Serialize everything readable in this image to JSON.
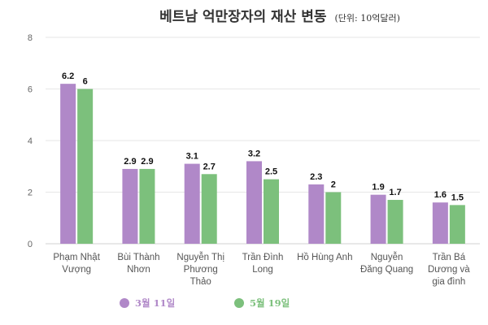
{
  "chart_data": {
    "type": "bar",
    "title": "베트남 억만장자의 재산 변동",
    "subtitle": "(단위: 10억달러)",
    "xlabel": "",
    "ylabel": "",
    "ylim": [
      0,
      8
    ],
    "yticks": [
      0,
      2,
      4,
      6,
      8
    ],
    "grid": true,
    "legend_position": "bottom-left",
    "categories": [
      [
        "Phạm Nhật",
        "Vượng"
      ],
      [
        "Bùi Thành",
        "Nhơn"
      ],
      [
        "Nguyễn Thị",
        "Phương",
        "Thảo"
      ],
      [
        "Trần Đình",
        "Long"
      ],
      [
        "Hồ Hùng Anh"
      ],
      [
        "Nguyễn",
        "Đăng Quang"
      ],
      [
        "Trần Bá",
        "Dương và",
        "gia đình"
      ]
    ],
    "series": [
      {
        "name": "3월 11일",
        "color": "#b088c8",
        "values": [
          6.2,
          2.9,
          3.1,
          3.2,
          2.3,
          1.9,
          1.6
        ],
        "labels": [
          "6.2",
          "2.9",
          "3.1",
          "3.2",
          "2.3",
          "1.9",
          "1.6"
        ]
      },
      {
        "name": "5월 19일",
        "color": "#7cc07c",
        "values": [
          6,
          2.9,
          2.7,
          2.5,
          2,
          1.7,
          1.5
        ],
        "labels": [
          "6",
          "2.9",
          "2.7",
          "2.5",
          "2",
          "1.7",
          "1.5"
        ]
      }
    ]
  }
}
